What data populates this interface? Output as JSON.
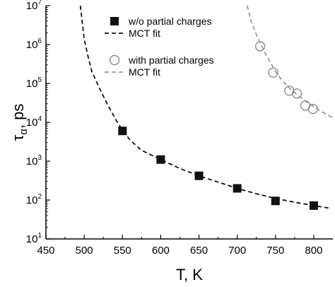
{
  "chart_data": {
    "type": "scatter",
    "title": "",
    "xlabel": "T, K",
    "ylabel": {
      "base": "τ",
      "subscript": "α",
      "rest": ", ps"
    },
    "xlim": [
      450,
      825
    ],
    "ylim_log10": [
      1,
      7
    ],
    "y_scale": "log",
    "x_ticks": [
      450,
      500,
      550,
      600,
      650,
      700,
      750,
      800
    ],
    "x_tick_labels": [
      "450",
      "500",
      "550",
      "600",
      "650",
      "700",
      "750",
      "800"
    ],
    "y_ticks_exponent": [
      1,
      2,
      3,
      4,
      5,
      6,
      7
    ],
    "y_tick_base": "10",
    "grid": false,
    "legend_position": "top-right",
    "series": [
      {
        "name": "w/o partial charges",
        "kind": "points",
        "marker": "filled-square",
        "color": "#111111",
        "x": [
          550,
          600,
          650,
          700,
          750,
          800
        ],
        "y": [
          6000,
          1100,
          420,
          200,
          95,
          72
        ]
      },
      {
        "name": "MCT fit",
        "kind": "fit-line",
        "style": "dashed",
        "color": "#111111",
        "x": [
          495,
          500,
          505,
          510,
          520,
          530,
          540,
          550,
          560,
          575,
          600,
          625,
          650,
          675,
          700,
          725,
          750,
          775,
          800,
          820
        ],
        "y": [
          10000000,
          1400000,
          500000,
          200000,
          75000,
          30000,
          13000,
          6200,
          3500,
          1900,
          1100,
          650,
          420,
          290,
          200,
          145,
          110,
          88,
          72,
          62
        ]
      },
      {
        "name": "with partial charges",
        "kind": "points",
        "marker": "open-circle",
        "color": "#8c8c8c",
        "x": [
          730,
          747,
          768,
          778,
          789,
          799
        ],
        "y": [
          900000,
          190000,
          65000,
          55000,
          27000,
          22000
        ]
      },
      {
        "name": "MCT fit",
        "kind": "fit-line",
        "style": "dashed",
        "color": "#999999",
        "x": [
          713,
          718,
          725,
          732,
          740,
          750,
          760,
          770,
          780,
          790,
          800,
          810,
          825
        ],
        "y": [
          10000000,
          4000000,
          1800000,
          900000,
          450000,
          200000,
          110000,
          70000,
          48000,
          34000,
          25000,
          19000,
          13000
        ]
      }
    ]
  }
}
